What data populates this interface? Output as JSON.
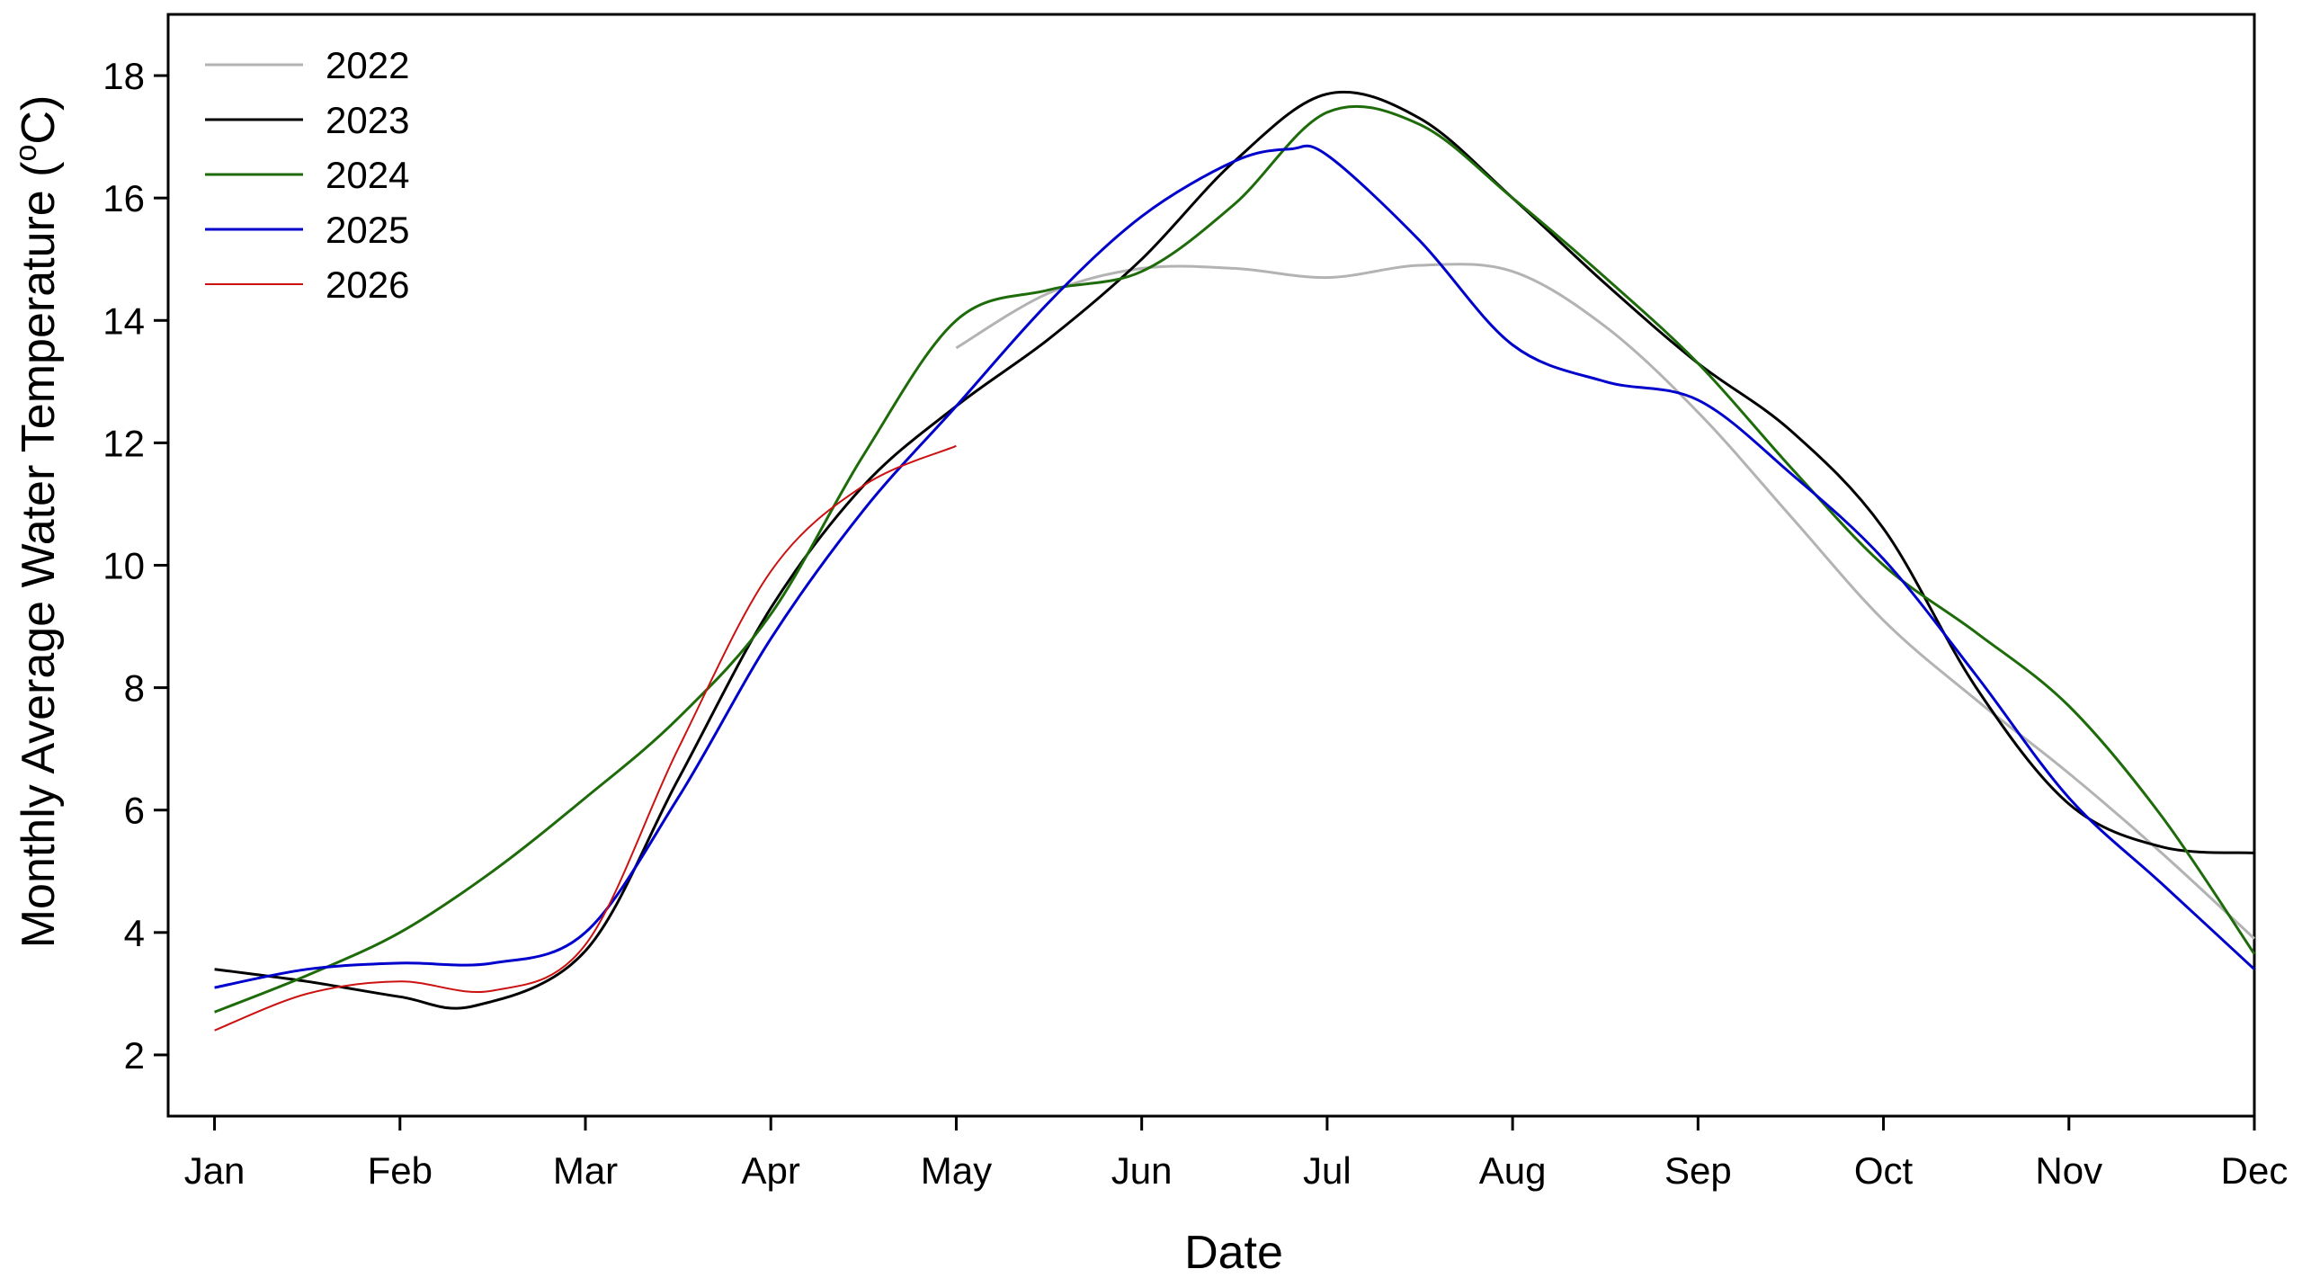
{
  "chart_data": {
    "type": "line",
    "title": "",
    "xlabel": "Date",
    "ylabel_main": "Monthly Average Water Temperature (",
    "ylabel_sup": "o",
    "ylabel_end": "C)",
    "categories": [
      "Jan",
      "Feb",
      "Mar",
      "Apr",
      "May",
      "Jun",
      "Jul",
      "Aug",
      "Sep",
      "Oct",
      "Nov",
      "Dec"
    ],
    "xlim": [
      0.75,
      12
    ],
    "ylim": [
      1,
      19
    ],
    "yticks": [
      "2",
      "4",
      "6",
      "8",
      "10",
      "12",
      "14",
      "16",
      "18"
    ],
    "grid": false,
    "legend": "top-left",
    "series": [
      {
        "name": "2022",
        "color": "#b3b3b3",
        "stroke": 3,
        "x": [
          5,
          5.5,
          6,
          6.5,
          7,
          7.5,
          8,
          8.5,
          9,
          9.5,
          10,
          10.5,
          11,
          11.5,
          12
        ],
        "y": [
          13.55,
          14.45,
          14.85,
          14.85,
          14.7,
          14.9,
          14.8,
          13.9,
          12.5,
          10.8,
          9.1,
          7.8,
          6.6,
          5.3,
          3.9
        ]
      },
      {
        "name": "2023",
        "color": "#000000",
        "stroke": 3,
        "x": [
          1,
          1.5,
          2,
          2.4,
          3,
          3.5,
          4,
          4.5,
          5,
          5.5,
          6,
          6.5,
          7,
          7.5,
          8,
          8.5,
          9,
          9.5,
          10,
          10.5,
          11,
          11.5,
          12
        ],
        "y": [
          3.4,
          3.2,
          2.95,
          2.8,
          3.7,
          6.5,
          9.3,
          11.3,
          12.6,
          13.7,
          15.0,
          16.6,
          17.7,
          17.3,
          16.0,
          14.6,
          13.3,
          12.2,
          10.6,
          8.0,
          6.1,
          5.4,
          5.3
        ]
      },
      {
        "name": "2024",
        "color": "#1e6b0a",
        "stroke": 3,
        "x": [
          1,
          1.5,
          2,
          2.5,
          3,
          3.5,
          4,
          4.5,
          5,
          5.5,
          6,
          6.5,
          7,
          7.5,
          8,
          8.5,
          9,
          9.5,
          10,
          10.5,
          11,
          11.5,
          12
        ],
        "y": [
          2.7,
          3.3,
          4.0,
          5.0,
          6.2,
          7.5,
          9.2,
          11.8,
          14.0,
          14.5,
          14.8,
          15.9,
          17.4,
          17.2,
          16.0,
          14.7,
          13.3,
          11.6,
          10.0,
          8.9,
          7.7,
          5.9,
          3.65
        ]
      },
      {
        "name": "2025",
        "color": "#0000cc",
        "stroke": 3,
        "x": [
          1,
          1.5,
          2,
          2.5,
          3,
          3.5,
          4,
          4.5,
          5,
          5.5,
          6,
          6.5,
          6.8,
          7,
          7.5,
          8,
          8.5,
          9,
          9.5,
          10,
          10.5,
          11,
          11.5,
          12
        ],
        "y": [
          3.1,
          3.4,
          3.5,
          3.5,
          4.0,
          6.2,
          8.8,
          10.9,
          12.6,
          14.3,
          15.7,
          16.6,
          16.8,
          16.7,
          15.3,
          13.6,
          13.0,
          12.7,
          11.5,
          10.1,
          8.2,
          6.2,
          4.8,
          3.4
        ]
      },
      {
        "name": "2026",
        "color": "#cc1111",
        "stroke": 2,
        "x": [
          1,
          1.5,
          2,
          2.5,
          3,
          3.5,
          4,
          4.5,
          5
        ],
        "y": [
          2.4,
          3.0,
          3.2,
          3.05,
          3.8,
          7.0,
          9.9,
          11.3,
          11.95
        ]
      }
    ]
  }
}
